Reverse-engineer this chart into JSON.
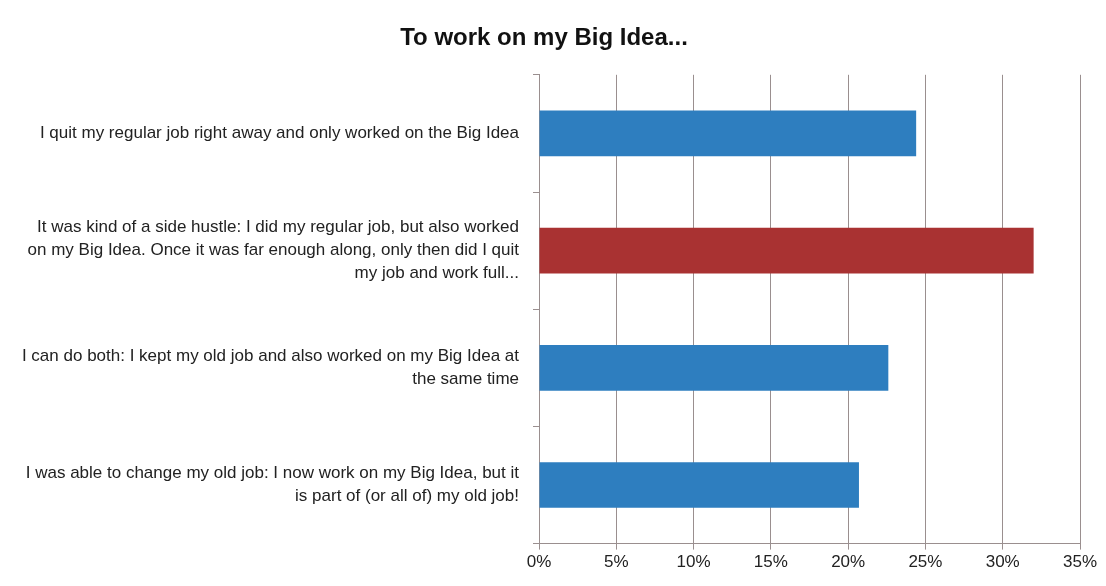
{
  "chart_data": {
    "type": "bar",
    "orientation": "horizontal",
    "title": "To work on my Big Idea...",
    "categories": [
      "I quit my regular job right away and only worked on the Big Idea",
      "It was kind of a side hustle: I did my regular job, but also worked on my Big Idea. Once it was far enough along, only then did I quit my job and work full...",
      "I can do both: I kept my old job and also worked on my Big Idea at the same time",
      "I was able to change my old job: I now work on my Big Idea, but it is part of (or all of) my old job!"
    ],
    "values": [
      24.4,
      32.0,
      22.6,
      20.7
    ],
    "colors": [
      "#2e7ebf",
      "#a93232",
      "#2e7ebf",
      "#2e7ebf"
    ],
    "xlim": [
      0,
      35
    ],
    "xticks": [
      {
        "value": 0,
        "label": "0%"
      },
      {
        "value": 5,
        "label": "5%"
      },
      {
        "value": 10,
        "label": "10%"
      },
      {
        "value": 15,
        "label": "15%"
      },
      {
        "value": 20,
        "label": "20%"
      },
      {
        "value": 25,
        "label": "25%"
      },
      {
        "value": 30,
        "label": "30%"
      },
      {
        "value": 35,
        "label": "35%"
      }
    ],
    "grid": "x",
    "legend": false
  }
}
